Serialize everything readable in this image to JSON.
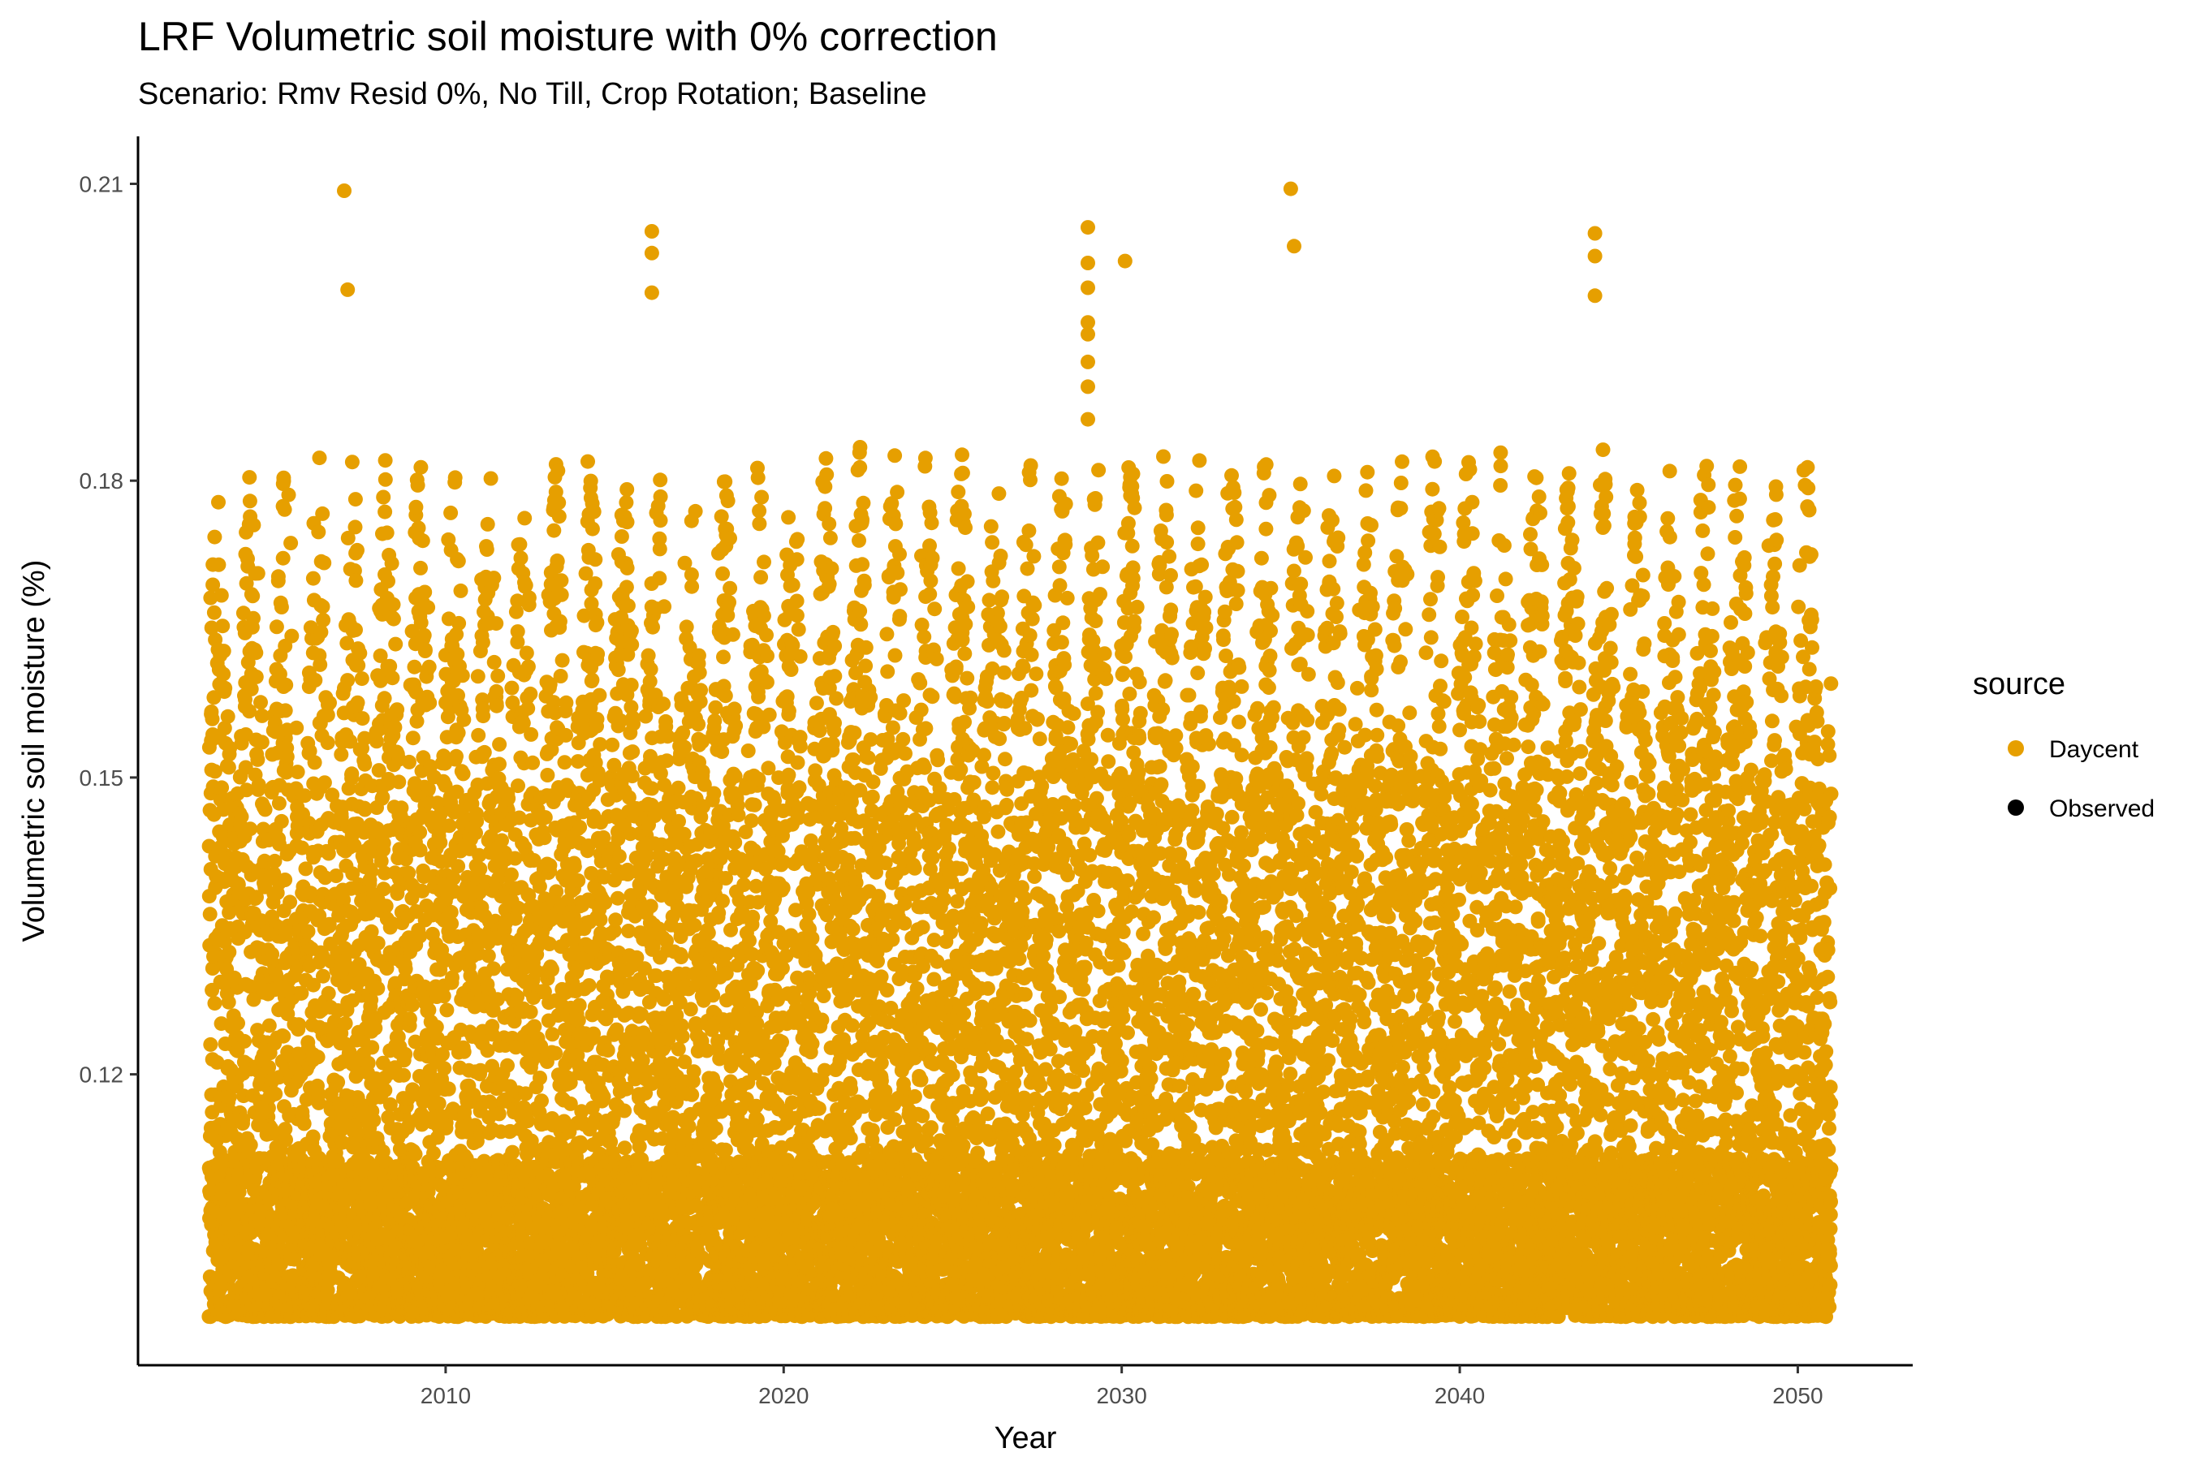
{
  "chart_data": {
    "type": "scatter",
    "title": "LRF Volumetric soil moisture with 0% correction",
    "subtitle": "Scenario: Rmv Resid 0%, No Till, Crop Rotation; Baseline",
    "xlabel": "Year",
    "ylabel": "Volumetric soil moisture (%)",
    "xlim": [
      2000.9,
      2053.4
    ],
    "ylim": [
      0.0906,
      0.2148
    ],
    "x_ticks": [
      2010,
      2020,
      2030,
      2040,
      2050
    ],
    "x_tick_labels": [
      "2010",
      "2020",
      "2030",
      "2040",
      "2050"
    ],
    "y_ticks": [
      0.12,
      0.15,
      0.18,
      0.21
    ],
    "y_tick_labels": [
      "0.12",
      "0.15",
      "0.18",
      "0.21"
    ],
    "grid": false,
    "legend": {
      "title": "source",
      "position": "right",
      "entries": [
        {
          "label": "Daycent",
          "color": "#E69F00"
        },
        {
          "label": "Observed",
          "color": "#000000"
        }
      ]
    },
    "series": [
      {
        "name": "Daycent",
        "color": "#E69F00",
        "date_range": [
          "2003-01-01",
          "2050-12-31"
        ],
        "typical_range": [
          0.0955,
          0.1835
        ],
        "outliers": [
          {
            "x": 2007.0,
            "y": 0.2093
          },
          {
            "x": 2007.1,
            "y": 0.1993
          },
          {
            "x": 2016.1,
            "y": 0.2052
          },
          {
            "x": 2016.1,
            "y": 0.203
          },
          {
            "x": 2016.1,
            "y": 0.199
          },
          {
            "x": 2029.0,
            "y": 0.2056
          },
          {
            "x": 2029.0,
            "y": 0.202
          },
          {
            "x": 2029.0,
            "y": 0.1995
          },
          {
            "x": 2029.0,
            "y": 0.196
          },
          {
            "x": 2029.0,
            "y": 0.1948
          },
          {
            "x": 2029.0,
            "y": 0.192
          },
          {
            "x": 2029.0,
            "y": 0.1895
          },
          {
            "x": 2029.0,
            "y": 0.1862
          },
          {
            "x": 2030.1,
            "y": 0.2022
          },
          {
            "x": 2035.0,
            "y": 0.2095
          },
          {
            "x": 2035.1,
            "y": 0.2037
          },
          {
            "x": 2044.0,
            "y": 0.205
          },
          {
            "x": 2044.0,
            "y": 0.2027
          },
          {
            "x": 2044.0,
            "y": 0.1987
          }
        ]
      },
      {
        "name": "Observed",
        "color": "#000000",
        "x": [],
        "y": []
      }
    ]
  }
}
